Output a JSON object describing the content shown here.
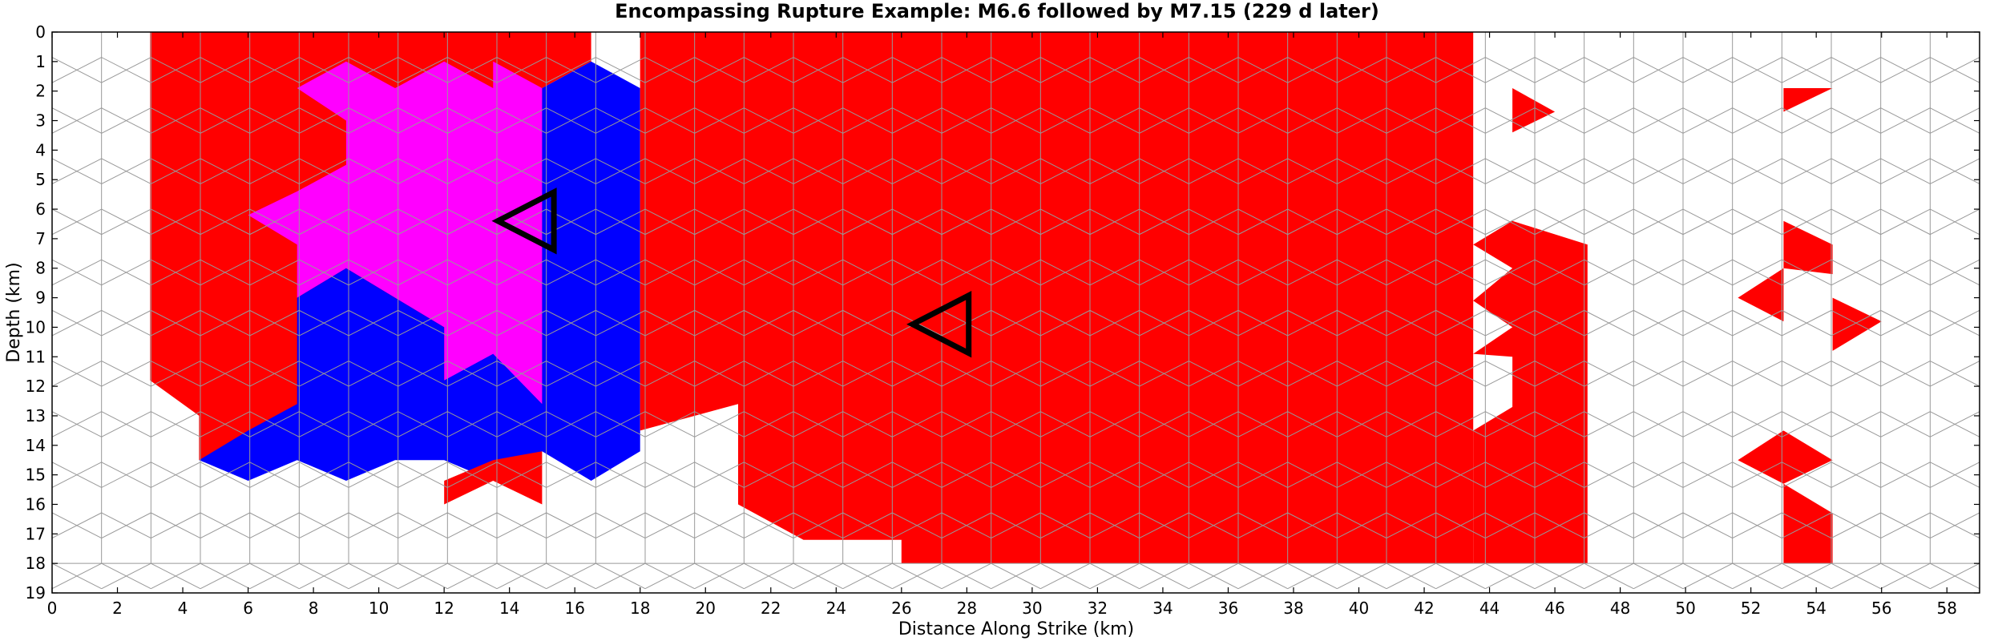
{
  "chart_data": {
    "type": "heatmap",
    "title": "Encompassing Rupture Example: M6.6 followed by M7.15 (229 d later)",
    "xlabel": "Distance Along Strike (km)",
    "ylabel": "Depth (km)",
    "xlim": [
      0,
      59
    ],
    "ylim": [
      19,
      0
    ],
    "x_ticks": [
      0,
      2,
      4,
      6,
      8,
      10,
      12,
      14,
      16,
      18,
      20,
      22,
      24,
      26,
      28,
      30,
      32,
      34,
      36,
      38,
      40,
      42,
      44,
      46,
      48,
      50,
      52,
      54,
      56,
      58
    ],
    "y_ticks": [
      0,
      1,
      2,
      3,
      4,
      5,
      6,
      7,
      8,
      9,
      10,
      11,
      12,
      13,
      14,
      15,
      16,
      17,
      18,
      19
    ],
    "grid": false,
    "fault_extent_km": {
      "x": [
        0,
        59
      ],
      "depth": [
        0,
        18
      ]
    },
    "colors": {
      "both_events": "#ff0000",
      "first_event_only": "#ff00ff",
      "second_event_only": "#0000ff",
      "background": "#ffffff",
      "mesh_lines": "#999999"
    },
    "ruptured_regions": [
      {
        "color": "#ff0000",
        "polygon": [
          [
            3,
            0
          ],
          [
            16.5,
            0
          ],
          [
            16.5,
            1
          ],
          [
            15,
            1.9
          ],
          [
            15,
            3
          ],
          [
            15,
            12.5
          ],
          [
            16.5,
            13.5
          ],
          [
            16.5,
            14
          ],
          [
            4.5,
            14.5
          ],
          [
            4.5,
            13
          ],
          [
            3,
            11.8
          ]
        ]
      },
      {
        "color": "#ff00ff",
        "polygon": [
          [
            7.5,
            1.9
          ],
          [
            9,
            1
          ],
          [
            10.5,
            1.9
          ],
          [
            12,
            1
          ],
          [
            13.5,
            1.9
          ],
          [
            13.5,
            1
          ],
          [
            15,
            1.9
          ],
          [
            15,
            12.6
          ],
          [
            13.5,
            11.8
          ],
          [
            12,
            11.8
          ],
          [
            12,
            10
          ],
          [
            10.5,
            9
          ],
          [
            9,
            8
          ],
          [
            7.5,
            9
          ],
          [
            7.5,
            7.2
          ],
          [
            6,
            6.2
          ],
          [
            7.5,
            5.4
          ],
          [
            9,
            4.5
          ],
          [
            9,
            3
          ],
          [
            7.5,
            1.9
          ]
        ]
      },
      {
        "color": "#0000ff",
        "polygon": [
          [
            15,
            1.9
          ],
          [
            16.5,
            1
          ],
          [
            18,
            1.9
          ],
          [
            18,
            14.2
          ],
          [
            16.5,
            15.2
          ],
          [
            15,
            14.2
          ],
          [
            13.5,
            15.2
          ],
          [
            12,
            14.5
          ],
          [
            10.5,
            14.5
          ],
          [
            9,
            15.2
          ],
          [
            7.5,
            14.5
          ],
          [
            6,
            15.2
          ],
          [
            4.5,
            14.5
          ],
          [
            6,
            13.5
          ],
          [
            7.5,
            12.6
          ],
          [
            7.5,
            9
          ],
          [
            9,
            8
          ],
          [
            10.5,
            9
          ],
          [
            12,
            10
          ],
          [
            12,
            11.8
          ],
          [
            13.5,
            10.9
          ],
          [
            15,
            12.6
          ]
        ]
      },
      {
        "color": "#ff0000",
        "polygon": [
          [
            13.5,
            14.5
          ],
          [
            15,
            14.2
          ],
          [
            15,
            16
          ],
          [
            13.5,
            15.2
          ],
          [
            12,
            16
          ],
          [
            12,
            15.2
          ]
        ]
      },
      {
        "color": "#ff0000",
        "polygon": [
          [
            18,
            0
          ],
          [
            43.5,
            0
          ],
          [
            43.5,
            18
          ],
          [
            26,
            18
          ],
          [
            26,
            17.2
          ],
          [
            24.5,
            17.2
          ],
          [
            23,
            17.2
          ],
          [
            21,
            16
          ],
          [
            21,
            12.6
          ],
          [
            18,
            13.5
          ]
        ]
      },
      {
        "color": "#ff0000",
        "polygon": [
          [
            43.5,
            13.5
          ],
          [
            44.7,
            12.7
          ],
          [
            44.7,
            11
          ],
          [
            43.5,
            10.9
          ],
          [
            44.7,
            10
          ],
          [
            43.5,
            9.1
          ],
          [
            44.7,
            8
          ],
          [
            43.5,
            7.2
          ],
          [
            44.7,
            6.4
          ],
          [
            47,
            7.2
          ],
          [
            47,
            18
          ],
          [
            43.5,
            18
          ]
        ]
      },
      {
        "color": "#ff0000",
        "polygon": [
          [
            44.7,
            1.9
          ],
          [
            46,
            2.7
          ],
          [
            44.7,
            3.4
          ]
        ]
      },
      {
        "color": "#ff0000",
        "polygon": [
          [
            53,
            1.9
          ],
          [
            54.5,
            1.9
          ],
          [
            53,
            2.7
          ]
        ]
      },
      {
        "color": "#ff0000",
        "polygon": [
          [
            53,
            6.4
          ],
          [
            54.5,
            7.2
          ],
          [
            54.5,
            8.2
          ],
          [
            53,
            8
          ]
        ]
      },
      {
        "color": "#ff0000",
        "polygon": [
          [
            51.6,
            9
          ],
          [
            53,
            8
          ],
          [
            53,
            9.8
          ]
        ]
      },
      {
        "color": "#ff0000",
        "polygon": [
          [
            54.5,
            9
          ],
          [
            56,
            9.8
          ],
          [
            54.5,
            10.8
          ]
        ]
      },
      {
        "color": "#ff0000",
        "polygon": [
          [
            51.6,
            14.5
          ],
          [
            53,
            13.5
          ],
          [
            54.5,
            14.5
          ],
          [
            53,
            15.3
          ]
        ]
      },
      {
        "color": "#ff0000",
        "polygon": [
          [
            53,
            15.3
          ],
          [
            54.5,
            16.3
          ],
          [
            54.5,
            18
          ],
          [
            53,
            18
          ]
        ]
      }
    ],
    "hypocenters": [
      {
        "event": "M6.6",
        "x": 14.5,
        "depth": 6.4
      },
      {
        "event": "M7.15",
        "x": 27.2,
        "depth": 9.9
      }
    ]
  }
}
